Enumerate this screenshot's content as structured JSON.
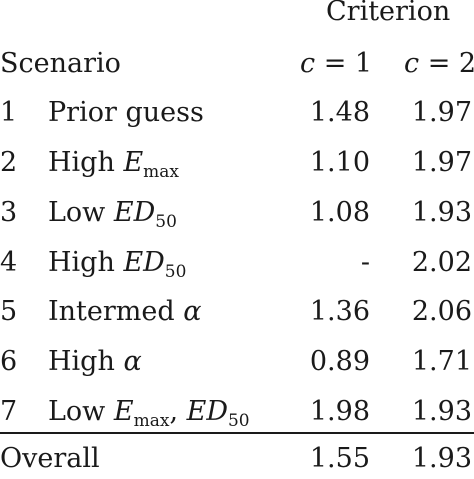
{
  "header": {
    "group_label": "Criterion",
    "scenario_label": "Scenario",
    "col1_label": "c = 1",
    "col2_label": "c = 2"
  },
  "rows": [
    {
      "index": "1",
      "scenario": "Prior guess",
      "c1": "1.48",
      "c2": "1.97"
    },
    {
      "index": "2",
      "scenario": "High E_max",
      "c1": "1.10",
      "c2": "1.97"
    },
    {
      "index": "3",
      "scenario": "Low ED_50",
      "c1": "1.08",
      "c2": "1.93"
    },
    {
      "index": "4",
      "scenario": "High ED_50",
      "c1": "-",
      "c2": "2.02"
    },
    {
      "index": "5",
      "scenario": "Intermed α",
      "c1": "1.36",
      "c2": "2.06"
    },
    {
      "index": "6",
      "scenario": "High α",
      "c1": "0.89",
      "c2": "1.71"
    },
    {
      "index": "7",
      "scenario": "Low E_max, ED_50",
      "c1": "1.98",
      "c2": "1.93"
    }
  ],
  "overall": {
    "label": "Overall",
    "c1": "1.55",
    "c2": "1.93"
  }
}
